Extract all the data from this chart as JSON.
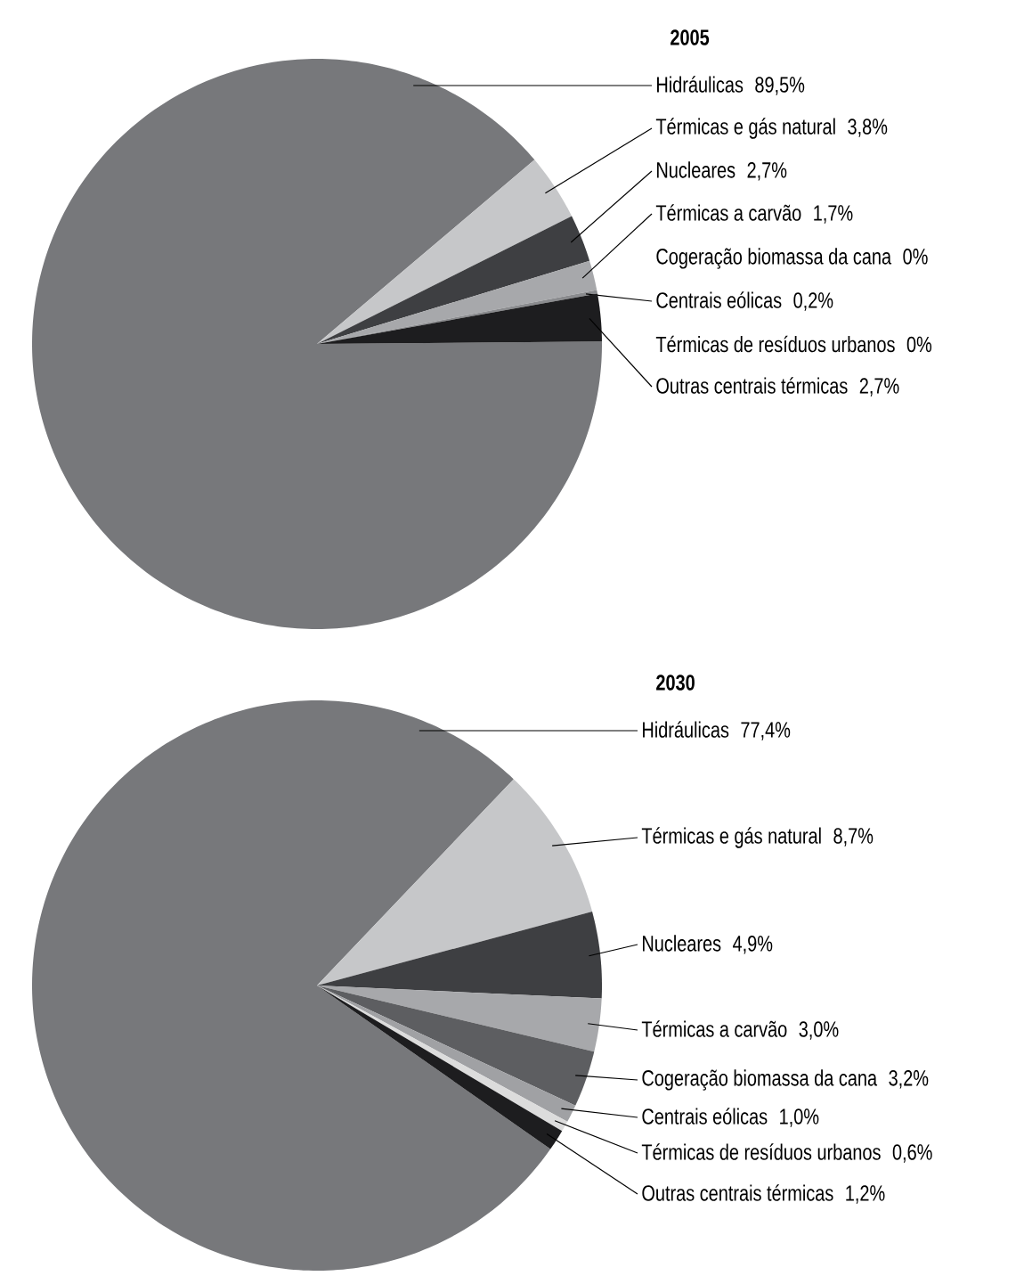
{
  "chart_data": [
    {
      "type": "pie",
      "title": "2005",
      "categories": [
        "Hidráulicas",
        "Térmicas e gás natural",
        "Nucleares",
        "Térmicas a carvão",
        "Cogeração biomassa da cana",
        "Centrais eólicas",
        "Térmicas de resíduos urbanos",
        "Outras centrais térmicas"
      ],
      "values": [
        89.5,
        3.8,
        2.7,
        1.7,
        0,
        0.2,
        0,
        2.7
      ],
      "value_labels": [
        "89,5%",
        "3,8%",
        "2,7%",
        "1,7%",
        "0%",
        "0,2%",
        "0%",
        "2,7%"
      ],
      "colors": [
        "#77787b",
        "#c6c7c9",
        "#3e3f42",
        "#a7a8ab",
        "#5d5e61",
        "#8a8b8e",
        "#dcdcdc",
        "#1d1d1f"
      ]
    },
    {
      "type": "pie",
      "title": "2030",
      "categories": [
        "Hidráulicas",
        "Térmicas e gás natural",
        "Nucleares",
        "Térmicas a carvão",
        "Cogeração biomassa da cana",
        "Centrais eólicas",
        "Térmicas de resíduos urbanos",
        "Outras centrais térmicas"
      ],
      "values": [
        77.4,
        8.7,
        4.9,
        3.0,
        3.2,
        1.0,
        0.6,
        1.2
      ],
      "value_labels": [
        "77,4%",
        "8,7%",
        "4,9%",
        "3,0%",
        "3,2%",
        "1,0%",
        "0,6%",
        "1,2%"
      ],
      "colors": [
        "#77787b",
        "#c6c7c9",
        "#3e3f42",
        "#a7a8ab",
        "#5d5e61",
        "#a0a1a4",
        "#dcdcdc",
        "#1d1d1f"
      ]
    }
  ]
}
